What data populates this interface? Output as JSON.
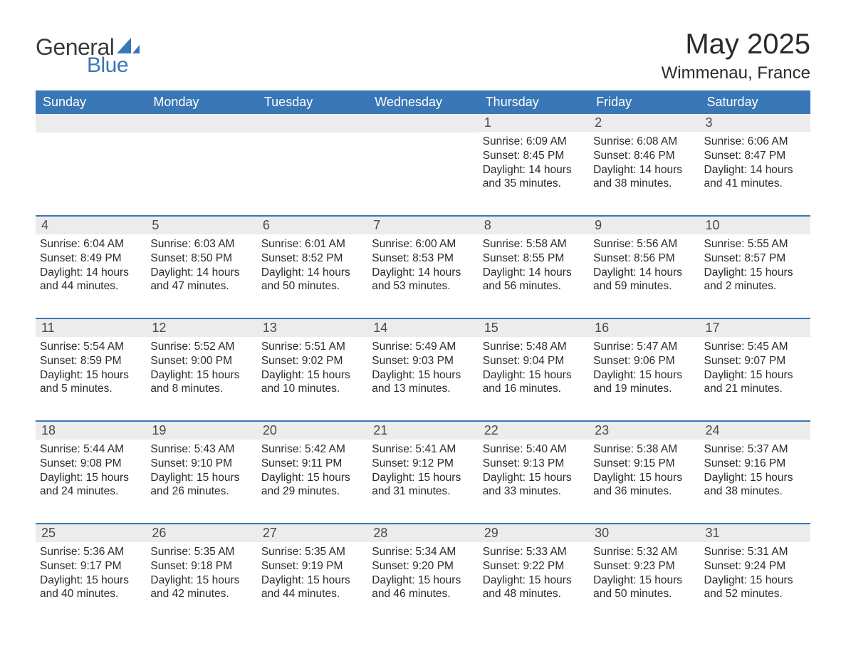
{
  "brand": {
    "word1": "General",
    "word2": "Blue",
    "accent_color": "#3a77b7",
    "text_color": "#3a3a3a"
  },
  "title": "May 2025",
  "location": "Wimmenau, France",
  "colors": {
    "header_bg": "#3a77b7",
    "header_fg": "#ffffff",
    "daynum_bg": "#ececec",
    "body_fg": "#2b2b2b",
    "page_bg": "#ffffff"
  },
  "fonts": {
    "title_size": 40,
    "location_size": 24,
    "dow_size": 18,
    "daynum_size": 18,
    "body_size": 15.5
  },
  "days_of_week": [
    "Sunday",
    "Monday",
    "Tuesday",
    "Wednesday",
    "Thursday",
    "Friday",
    "Saturday"
  ],
  "weeks": [
    [
      null,
      null,
      null,
      null,
      {
        "n": "1",
        "sr": "6:09 AM",
        "ss": "8:45 PM",
        "dl": "14 hours and 35 minutes."
      },
      {
        "n": "2",
        "sr": "6:08 AM",
        "ss": "8:46 PM",
        "dl": "14 hours and 38 minutes."
      },
      {
        "n": "3",
        "sr": "6:06 AM",
        "ss": "8:47 PM",
        "dl": "14 hours and 41 minutes."
      }
    ],
    [
      {
        "n": "4",
        "sr": "6:04 AM",
        "ss": "8:49 PM",
        "dl": "14 hours and 44 minutes."
      },
      {
        "n": "5",
        "sr": "6:03 AM",
        "ss": "8:50 PM",
        "dl": "14 hours and 47 minutes."
      },
      {
        "n": "6",
        "sr": "6:01 AM",
        "ss": "8:52 PM",
        "dl": "14 hours and 50 minutes."
      },
      {
        "n": "7",
        "sr": "6:00 AM",
        "ss": "8:53 PM",
        "dl": "14 hours and 53 minutes."
      },
      {
        "n": "8",
        "sr": "5:58 AM",
        "ss": "8:55 PM",
        "dl": "14 hours and 56 minutes."
      },
      {
        "n": "9",
        "sr": "5:56 AM",
        "ss": "8:56 PM",
        "dl": "14 hours and 59 minutes."
      },
      {
        "n": "10",
        "sr": "5:55 AM",
        "ss": "8:57 PM",
        "dl": "15 hours and 2 minutes."
      }
    ],
    [
      {
        "n": "11",
        "sr": "5:54 AM",
        "ss": "8:59 PM",
        "dl": "15 hours and 5 minutes."
      },
      {
        "n": "12",
        "sr": "5:52 AM",
        "ss": "9:00 PM",
        "dl": "15 hours and 8 minutes."
      },
      {
        "n": "13",
        "sr": "5:51 AM",
        "ss": "9:02 PM",
        "dl": "15 hours and 10 minutes."
      },
      {
        "n": "14",
        "sr": "5:49 AM",
        "ss": "9:03 PM",
        "dl": "15 hours and 13 minutes."
      },
      {
        "n": "15",
        "sr": "5:48 AM",
        "ss": "9:04 PM",
        "dl": "15 hours and 16 minutes."
      },
      {
        "n": "16",
        "sr": "5:47 AM",
        "ss": "9:06 PM",
        "dl": "15 hours and 19 minutes."
      },
      {
        "n": "17",
        "sr": "5:45 AM",
        "ss": "9:07 PM",
        "dl": "15 hours and 21 minutes."
      }
    ],
    [
      {
        "n": "18",
        "sr": "5:44 AM",
        "ss": "9:08 PM",
        "dl": "15 hours and 24 minutes."
      },
      {
        "n": "19",
        "sr": "5:43 AM",
        "ss": "9:10 PM",
        "dl": "15 hours and 26 minutes."
      },
      {
        "n": "20",
        "sr": "5:42 AM",
        "ss": "9:11 PM",
        "dl": "15 hours and 29 minutes."
      },
      {
        "n": "21",
        "sr": "5:41 AM",
        "ss": "9:12 PM",
        "dl": "15 hours and 31 minutes."
      },
      {
        "n": "22",
        "sr": "5:40 AM",
        "ss": "9:13 PM",
        "dl": "15 hours and 33 minutes."
      },
      {
        "n": "23",
        "sr": "5:38 AM",
        "ss": "9:15 PM",
        "dl": "15 hours and 36 minutes."
      },
      {
        "n": "24",
        "sr": "5:37 AM",
        "ss": "9:16 PM",
        "dl": "15 hours and 38 minutes."
      }
    ],
    [
      {
        "n": "25",
        "sr": "5:36 AM",
        "ss": "9:17 PM",
        "dl": "15 hours and 40 minutes."
      },
      {
        "n": "26",
        "sr": "5:35 AM",
        "ss": "9:18 PM",
        "dl": "15 hours and 42 minutes."
      },
      {
        "n": "27",
        "sr": "5:35 AM",
        "ss": "9:19 PM",
        "dl": "15 hours and 44 minutes."
      },
      {
        "n": "28",
        "sr": "5:34 AM",
        "ss": "9:20 PM",
        "dl": "15 hours and 46 minutes."
      },
      {
        "n": "29",
        "sr": "5:33 AM",
        "ss": "9:22 PM",
        "dl": "15 hours and 48 minutes."
      },
      {
        "n": "30",
        "sr": "5:32 AM",
        "ss": "9:23 PM",
        "dl": "15 hours and 50 minutes."
      },
      {
        "n": "31",
        "sr": "5:31 AM",
        "ss": "9:24 PM",
        "dl": "15 hours and 52 minutes."
      }
    ]
  ],
  "labels": {
    "sunrise": "Sunrise: ",
    "sunset": "Sunset: ",
    "daylight": "Daylight: "
  }
}
